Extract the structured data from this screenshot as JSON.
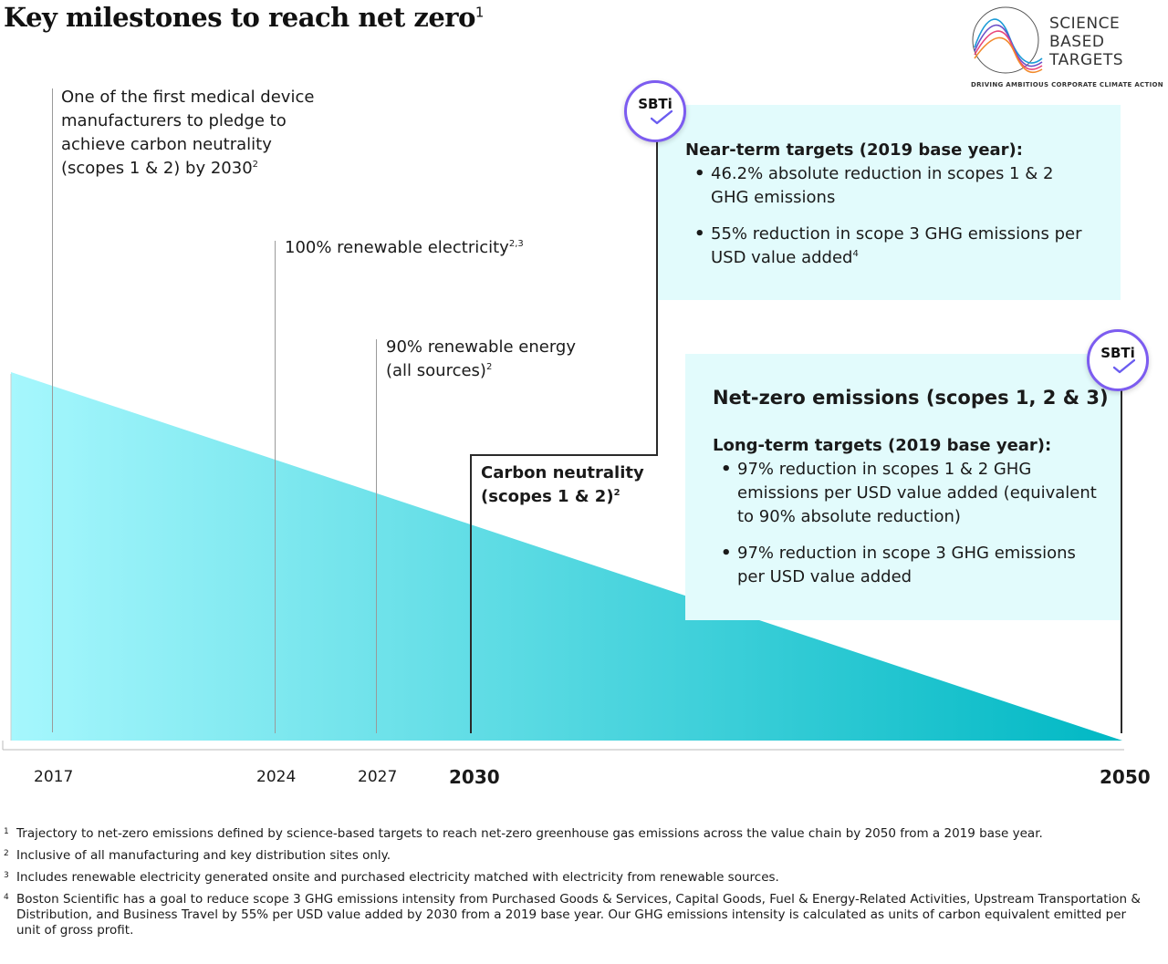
{
  "title": {
    "text": "Key milestones to reach net zero",
    "sup": "1"
  },
  "logo": {
    "line1": "SCIENCE",
    "line2": "BASED",
    "line3": "TARGETS",
    "tagline": "DRIVING AMBITIOUS CORPORATE CLIMATE ACTION"
  },
  "milestones": {
    "m2017": {
      "text": "One of the first medical device manufacturers to pledge to achieve carbon neutrality (scopes 1 & 2) by 2030",
      "sup": "2"
    },
    "m2024": {
      "text": "100% renewable electricity",
      "sup": "2,3"
    },
    "m2027": {
      "text": "90% renewable energy (all sources)",
      "sup": "2"
    },
    "m2030": {
      "text": "Carbon neutrality (scopes 1 & 2)",
      "sup": "2"
    }
  },
  "near_term": {
    "badge": "SBTi",
    "heading": "Near-term targets (2019 base year):",
    "bullet1": "46.2% absolute reduction in scopes 1 & 2 GHG emissions",
    "bullet2": "55% reduction in scope 3 GHG emissions per USD value added",
    "bullet2_sup": "4"
  },
  "long_term": {
    "badge": "SBTi",
    "title": "Net-zero emissions (scopes 1, 2 & 3)",
    "heading": "Long-term targets (2019 base year):",
    "bullet1": "97% reduction in scopes 1 & 2 GHG emissions per USD value added (equivalent to 90% absolute reduction)",
    "bullet2": "97% reduction in scope 3 GHG emissions per USD value added"
  },
  "years": {
    "y2017": "2017",
    "y2024": "2024",
    "y2027": "2027",
    "y2030": "2030",
    "y2050": "2050"
  },
  "footnotes": [
    {
      "num": "1",
      "text": "Trajectory to net-zero emissions defined by science-based targets to reach net-zero greenhouse gas emissions across the value chain by 2050 from a 2019 base year."
    },
    {
      "num": "2",
      "text": "Inclusive of all manufacturing and key distribution sites only."
    },
    {
      "num": "3",
      "text": "Includes renewable electricity generated onsite and purchased electricity matched with electricity from renewable sources."
    },
    {
      "num": "4",
      "text": "Boston Scientific has a goal to reduce scope 3 GHG emissions intensity from Purchased Goods & Services, Capital Goods, Fuel & Energy-Related Activities, Upstream Transportation & Distribution, and Business Travel by 55% per USD value added by 2030 from a 2019 base year. Our GHG emissions intensity is calculated as units of carbon equivalent emitted per unit of gross profit."
    }
  ],
  "colors": {
    "wedge_start": "#a6f7fd",
    "wedge_end": "#00b8c4",
    "panel_bg": "#e2fbfc",
    "badge_ring": "#7c5cf0"
  }
}
